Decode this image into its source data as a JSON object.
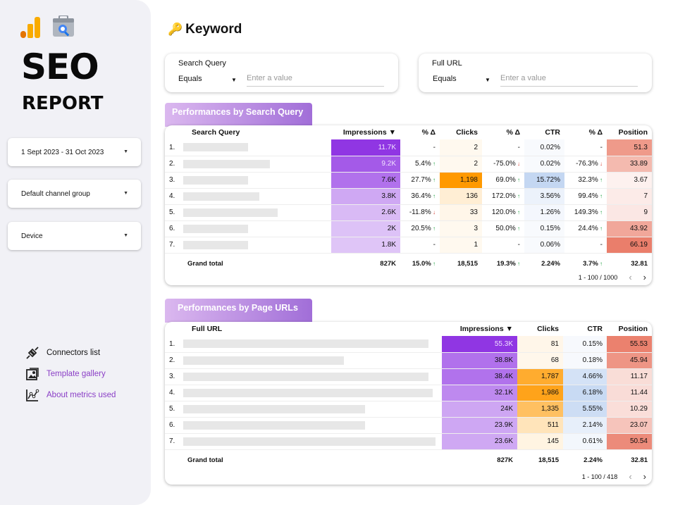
{
  "sidebar": {
    "title": "SEO",
    "subtitle": "REPORT",
    "filters": [
      {
        "label": "1 Sept 2023 - 31 Oct 2023"
      },
      {
        "label": "Default channel group"
      },
      {
        "label": "Device"
      }
    ],
    "links": [
      {
        "label": "Connectors list",
        "icon": "plug-icon"
      },
      {
        "label": "Template gallery",
        "icon": "gallery-icon"
      },
      {
        "label": "About metrics used",
        "icon": "line-chart-icon"
      }
    ]
  },
  "header": {
    "icon": "key-icon",
    "title": "Keyword"
  },
  "controls": {
    "search_query": {
      "label": "Search Query",
      "operator": "Equals",
      "placeholder": "Enter a value"
    },
    "full_url": {
      "label": "Full URL",
      "operator": "Equals",
      "placeholder": "Enter a value"
    }
  },
  "query_table": {
    "tab": "Performances by Search Query",
    "headers": [
      "Search Query",
      "Impressions ▼",
      "% Δ",
      "Clicks",
      "% Δ",
      "CTR",
      "% Δ",
      "Position"
    ],
    "rows": [
      {
        "idx": "1.",
        "impr": "11.7K",
        "impr_delta": "-",
        "impr_dir": "",
        "clicks": "2",
        "clicks_delta": "-",
        "clicks_dir": "",
        "ctr": "0.02%",
        "ctr_delta": "-",
        "ctr_dir": "",
        "position": "51.3"
      },
      {
        "idx": "2.",
        "impr": "9.2K",
        "impr_delta": "5.4%",
        "impr_dir": "up",
        "clicks": "2",
        "clicks_delta": "-75.0%",
        "clicks_dir": "down",
        "ctr": "0.02%",
        "ctr_delta": "-76.3%",
        "ctr_dir": "down",
        "position": "33.89"
      },
      {
        "idx": "3.",
        "impr": "7.6K",
        "impr_delta": "27.7%",
        "impr_dir": "up",
        "clicks": "1,198",
        "clicks_delta": "69.0%",
        "clicks_dir": "up",
        "ctr": "15.72%",
        "ctr_delta": "32.3%",
        "ctr_dir": "up",
        "position": "3.67"
      },
      {
        "idx": "4.",
        "impr": "3.8K",
        "impr_delta": "36.4%",
        "impr_dir": "up",
        "clicks": "136",
        "clicks_delta": "172.0%",
        "clicks_dir": "up",
        "ctr": "3.56%",
        "ctr_delta": "99.4%",
        "ctr_dir": "up",
        "position": "7"
      },
      {
        "idx": "5.",
        "impr": "2.6K",
        "impr_delta": "-11.8%",
        "impr_dir": "down",
        "clicks": "33",
        "clicks_delta": "120.0%",
        "clicks_dir": "up",
        "ctr": "1.26%",
        "ctr_delta": "149.3%",
        "ctr_dir": "up",
        "position": "9"
      },
      {
        "idx": "6.",
        "impr": "2K",
        "impr_delta": "20.5%",
        "impr_dir": "up",
        "clicks": "3",
        "clicks_delta": "50.0%",
        "clicks_dir": "up",
        "ctr": "0.15%",
        "ctr_delta": "24.4%",
        "ctr_dir": "up",
        "position": "43.92"
      },
      {
        "idx": "7.",
        "impr": "1.8K",
        "impr_delta": "-",
        "impr_dir": "",
        "clicks": "1",
        "clicks_delta": "-",
        "clicks_dir": "",
        "ctr": "0.06%",
        "ctr_delta": "-",
        "ctr_dir": "",
        "position": "66.19"
      }
    ],
    "total": {
      "label": "Grand total",
      "impr": "827K",
      "impr_delta": "15.0%",
      "impr_dir": "up",
      "clicks": "18,515",
      "clicks_delta": "19.3%",
      "clicks_dir": "up",
      "ctr": "2.24%",
      "ctr_delta": "3.7%",
      "ctr_dir": "up",
      "position": "32.81"
    },
    "pager": "1 - 100 / 1000"
  },
  "url_table": {
    "tab": "Performances by Page URLs",
    "headers": [
      "Full URL",
      "Impressions ▼",
      "Clicks",
      "CTR",
      "Position"
    ],
    "rows": [
      {
        "idx": "1.",
        "impr": "55.3K",
        "clicks": "81",
        "ctr": "0.15%",
        "position": "55.53"
      },
      {
        "idx": "2.",
        "impr": "38.8K",
        "clicks": "68",
        "ctr": "0.18%",
        "position": "45.94"
      },
      {
        "idx": "3.",
        "impr": "38.4K",
        "clicks": "1,787",
        "ctr": "4.66%",
        "position": "11.17"
      },
      {
        "idx": "4.",
        "impr": "32.1K",
        "clicks": "1,986",
        "ctr": "6.18%",
        "position": "11.44"
      },
      {
        "idx": "5.",
        "impr": "24K",
        "clicks": "1,335",
        "ctr": "5.55%",
        "position": "10.29"
      },
      {
        "idx": "6.",
        "impr": "23.9K",
        "clicks": "511",
        "ctr": "2.14%",
        "position": "23.07"
      },
      {
        "idx": "7.",
        "impr": "23.6K",
        "clicks": "145",
        "ctr": "0.61%",
        "position": "50.54"
      }
    ],
    "total": {
      "label": "Grand total",
      "impr": "827K",
      "clicks": "18,515",
      "ctr": "2.24%",
      "position": "32.81"
    },
    "pager": "1 - 100 / 418"
  },
  "colors": {
    "impressions": "#8a2be2",
    "clicks": "#ff9900",
    "ctr": "#a8c4ec",
    "position": "#e8705a"
  }
}
